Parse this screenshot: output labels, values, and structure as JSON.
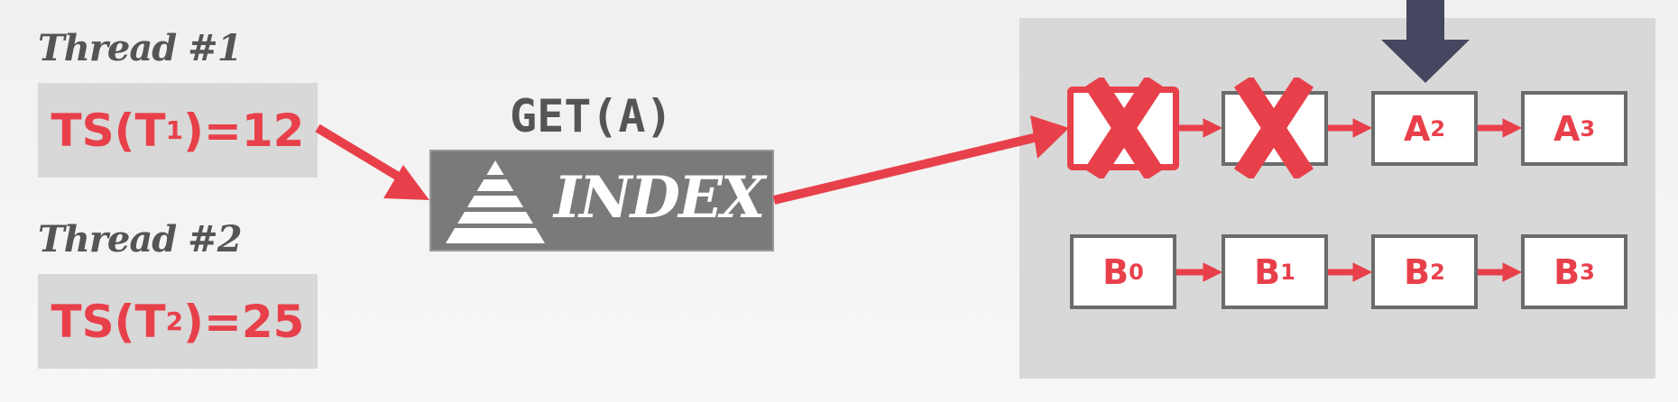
{
  "threads": [
    {
      "label": "Thread #1",
      "ts_prefix": "TS(T",
      "ts_sub": "1",
      "ts_suffix": ")=12"
    },
    {
      "label": "Thread #2",
      "ts_prefix": "TS(T",
      "ts_sub": "2",
      "ts_suffix": ")=25"
    }
  ],
  "operation": "GET(A)",
  "index": {
    "label": "INDEX",
    "icon": "pyramid-icon"
  },
  "versions": {
    "row_a": [
      {
        "letter": "",
        "sub": "",
        "state": "deleted"
      },
      {
        "letter": "",
        "sub": "",
        "state": "deleted"
      },
      {
        "letter": "A",
        "sub": "2",
        "state": "live"
      },
      {
        "letter": "A",
        "sub": "3",
        "state": "live"
      }
    ],
    "row_b": [
      {
        "letter": "B",
        "sub": "0",
        "state": "live"
      },
      {
        "letter": "B",
        "sub": "1",
        "state": "live"
      },
      {
        "letter": "B",
        "sub": "2",
        "state": "live"
      },
      {
        "letter": "B",
        "sub": "3",
        "state": "live"
      }
    ]
  },
  "colors": {
    "accent_red": "#e8404a",
    "dark_gray": "#555555",
    "box_gray": "#d8d8d8",
    "index_gray": "#7a7a7a",
    "pointer_navy": "#44475f"
  }
}
